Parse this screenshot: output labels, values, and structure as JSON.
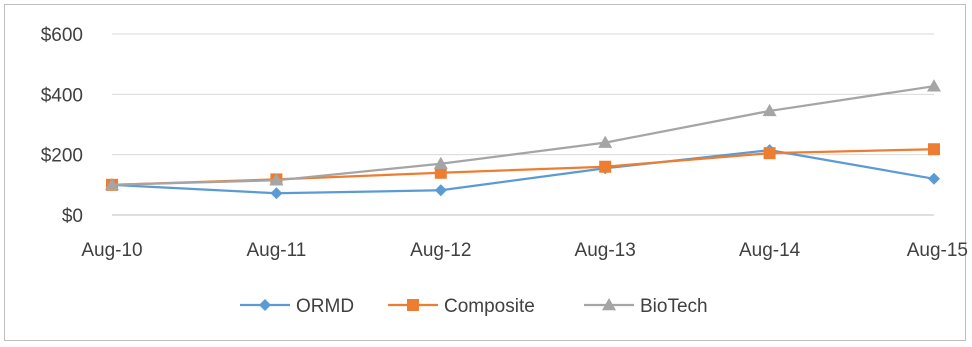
{
  "chart_data": {
    "type": "line",
    "categories": [
      "Aug-10",
      "Aug-11",
      "Aug-12",
      "Aug-13",
      "Aug-14",
      "Aug-15"
    ],
    "series": [
      {
        "name": "ORMD",
        "values": [
          100,
          72,
          82,
          155,
          215,
          120
        ],
        "color": "#5b9bd5",
        "marker": "diamond"
      },
      {
        "name": "Composite",
        "values": [
          100,
          118,
          140,
          160,
          205,
          218
        ],
        "color": "#ed7d31",
        "marker": "square"
      },
      {
        "name": "BioTech",
        "values": [
          100,
          115,
          170,
          240,
          345,
          427
        ],
        "color": "#a5a5a5",
        "marker": "triangle"
      }
    ],
    "yticks": [
      "$0",
      "$200",
      "$400",
      "$600"
    ],
    "ylim": [
      0,
      600
    ],
    "title": "",
    "xlabel": "",
    "ylabel": "",
    "grid": true,
    "legend_position": "bottom"
  }
}
